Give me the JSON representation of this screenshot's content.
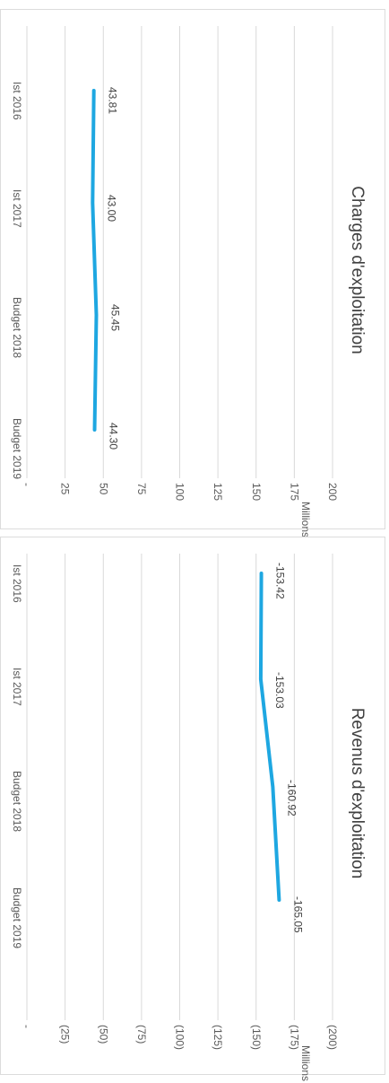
{
  "chart_data": [
    {
      "type": "line",
      "title": "Charges d'exploitation",
      "unit_label": "Millions",
      "categories": [
        "Ist 2016",
        "Ist 2017",
        "Budget 2018",
        "Budget 2019"
      ],
      "series": [
        {
          "values": [
            43.81,
            43.0,
            45.45,
            44.3
          ],
          "labels": [
            "43.81",
            "43.00",
            "45.45",
            "44.30"
          ]
        }
      ],
      "value_ticks": [
        0,
        25,
        50,
        75,
        100,
        125,
        150,
        175,
        200
      ],
      "value_tick_labels": [
        "-",
        "25",
        "50",
        "75",
        "100",
        "125",
        "150",
        "175",
        "200"
      ],
      "ylim": [
        0,
        200
      ],
      "orientation": "rotated-90-clockwise",
      "grid": true,
      "legend": "none",
      "line_color": "#1ea7e1"
    },
    {
      "type": "line",
      "title": "Revenus d'exploitation",
      "unit_label": "Millions",
      "categories": [
        "Ist 2016",
        "Ist 2017",
        "Budget 2018",
        "Budget 2019"
      ],
      "series": [
        {
          "values": [
            -153.42,
            -153.03,
            -160.92,
            -165.05
          ],
          "labels": [
            "-153.42",
            "-153.03",
            "-160.92",
            "-165.05"
          ]
        }
      ],
      "value_ticks": [
        0,
        -25,
        -50,
        -75,
        -100,
        -125,
        -150,
        -175,
        -200
      ],
      "value_tick_labels": [
        "-",
        "(25)",
        "(50)",
        "(75)",
        "(100)",
        "(125)",
        "(150)",
        "(175)",
        "(200)"
      ],
      "ylim": [
        -200,
        0
      ],
      "orientation": "rotated-90-clockwise",
      "grid": true,
      "legend": "none",
      "line_color": "#1ea7e1"
    }
  ]
}
